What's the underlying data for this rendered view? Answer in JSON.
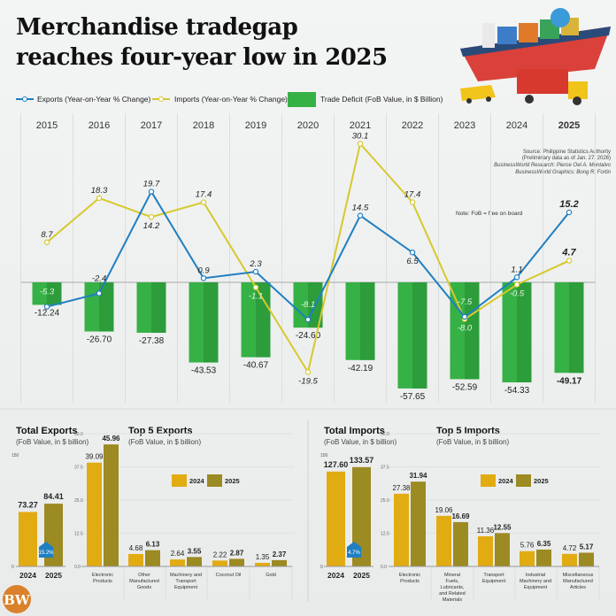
{
  "header": {
    "title_line1": "Merchandise tradegap",
    "title_line2": "reaches four-year low in 2025"
  },
  "legend": {
    "exports": "Exports (Year-on-Year % Change)",
    "imports": "Imports (Year-on-Year % Change)",
    "deficit": "Trade Deficit (FoB Value, in $ Billion)"
  },
  "source": {
    "line1": "Source: Philippine Statistics Authority",
    "line2": "(Preliminary data as of Jan. 27, 2026)",
    "line3": "BusinessWorld Research: Pierce Oel A. Montalvo",
    "line4": "BusinessWorld Graphics: Bong R. Fortin",
    "note": "Note: FoB = free on board"
  },
  "logo": "BW",
  "colors": {
    "exports": "#1f7fc2",
    "imports": "#d6c92c",
    "deficit": "#36b146",
    "deficit_dark": "#2d9c3b",
    "y2024": "#e1ab12",
    "y2025": "#9c8a22",
    "badge": "#1f7fc2"
  },
  "chart_data": [
    {
      "type": "line+bar",
      "title": "Merchandise tradegap reaches four-year low in 2025",
      "categories": [
        "2015",
        "2016",
        "2017",
        "2018",
        "2019",
        "2020",
        "2021",
        "2022",
        "2023",
        "2024",
        "2025"
      ],
      "series": [
        {
          "name": "Exports (Year-on-Year % Change)",
          "type": "line",
          "values": [
            -5.3,
            -2.4,
            19.7,
            0.9,
            2.3,
            -8.1,
            14.5,
            6.5,
            -7.5,
            1.1,
            15.2
          ]
        },
        {
          "name": "Imports (Year-on-Year % Change)",
          "type": "line",
          "values": [
            8.7,
            18.3,
            14.2,
            17.4,
            -1.1,
            -19.5,
            30.1,
            17.4,
            -8.0,
            -0.5,
            4.7
          ]
        },
        {
          "name": "Trade Deficit (FoB Value, in $ Billion)",
          "type": "bar",
          "values": [
            -12.24,
            -26.7,
            -27.38,
            -43.53,
            -40.67,
            -24.6,
            -42.19,
            -57.65,
            -52.59,
            -54.33,
            -49.17
          ]
        }
      ],
      "labels": {
        "deficit": [
          "-12.24",
          "-26.70",
          "-27.38",
          "-43.53",
          "-40.67",
          "-24.60",
          "-42.19",
          "-57.65",
          "-52.59",
          "-54.33",
          "-49.17"
        ],
        "exports": [
          "-5.3",
          "-2.4",
          "19.7",
          "0.9",
          "2.3",
          "-8.1",
          "14.5",
          "6.5",
          "-7.5",
          "1.1",
          "15.2"
        ],
        "imports": [
          "8.7",
          "18.3",
          "14.2",
          "17.4",
          "-1.1",
          "-19.5",
          "30.1",
          "17.4",
          "-8.0",
          "-0.5",
          "4.7"
        ]
      },
      "legend_position": "top"
    },
    {
      "type": "bar",
      "title": "Total Exports",
      "subtitle": "(FoB Value, in $ billion)",
      "categories": [
        "2024",
        "2025"
      ],
      "values": [
        73.27,
        84.41
      ],
      "value_labels": [
        "73.27",
        "84.41"
      ],
      "badge": "15.2%",
      "yticks": [
        "0",
        "150"
      ],
      "ylim": [
        0,
        150
      ]
    },
    {
      "type": "bar",
      "title": "Top 5 Exports",
      "subtitle": "(FoB Value, in $ billion)",
      "categories": [
        "Electronic Products",
        "Other Manufactured Goods",
        "Machinery and Transport Equipment",
        "Coconut Oil",
        "Gold"
      ],
      "series": [
        {
          "name": "2024",
          "values": [
            39.09,
            4.68,
            2.64,
            2.22,
            1.35
          ],
          "labels": [
            "39.09",
            "4.68",
            "2.64",
            "2.22",
            "1.35"
          ]
        },
        {
          "name": "2025",
          "values": [
            45.96,
            6.13,
            3.55,
            2.87,
            2.37
          ],
          "labels": [
            "45.96",
            "6.13",
            "3.55",
            "2.87",
            "2.37"
          ]
        }
      ],
      "yticks": [
        "0.0",
        "12.5",
        "25.0",
        "37.5",
        "50.0"
      ],
      "ylim": [
        0,
        50
      ],
      "legend_position": "center"
    },
    {
      "type": "bar",
      "title": "Total Imports",
      "subtitle": "(FoB Value, in $ billion)",
      "categories": [
        "2024",
        "2025"
      ],
      "values": [
        127.6,
        133.57
      ],
      "value_labels": [
        "127.60",
        "133.57"
      ],
      "badge": "4.7%",
      "yticks": [
        "0",
        "150"
      ],
      "ylim": [
        0,
        150
      ]
    },
    {
      "type": "bar",
      "title": "Top 5 Imports",
      "subtitle": "(FoB Value, in $ billion)",
      "categories": [
        "Electronic Products",
        "Mineral Fuels, Lubricants, and Related Materials",
        "Transport Equipment",
        "Industrial Machinery and Equipment",
        "Miscellaneous Manufactured Articles"
      ],
      "series": [
        {
          "name": "2024",
          "values": [
            27.38,
            19.06,
            11.36,
            5.76,
            4.72
          ],
          "labels": [
            "27.38",
            "19.06",
            "11.36",
            "5.76",
            "4.72"
          ]
        },
        {
          "name": "2025",
          "values": [
            31.94,
            16.69,
            12.55,
            6.35,
            5.17
          ],
          "labels": [
            "31.94",
            "16.69",
            "12.55",
            "6.35",
            "5.17"
          ]
        }
      ],
      "yticks": [
        "0.0",
        "12.5",
        "25.0",
        "37.5",
        "50.0"
      ],
      "ylim": [
        0,
        50
      ],
      "legend_position": "center"
    }
  ]
}
